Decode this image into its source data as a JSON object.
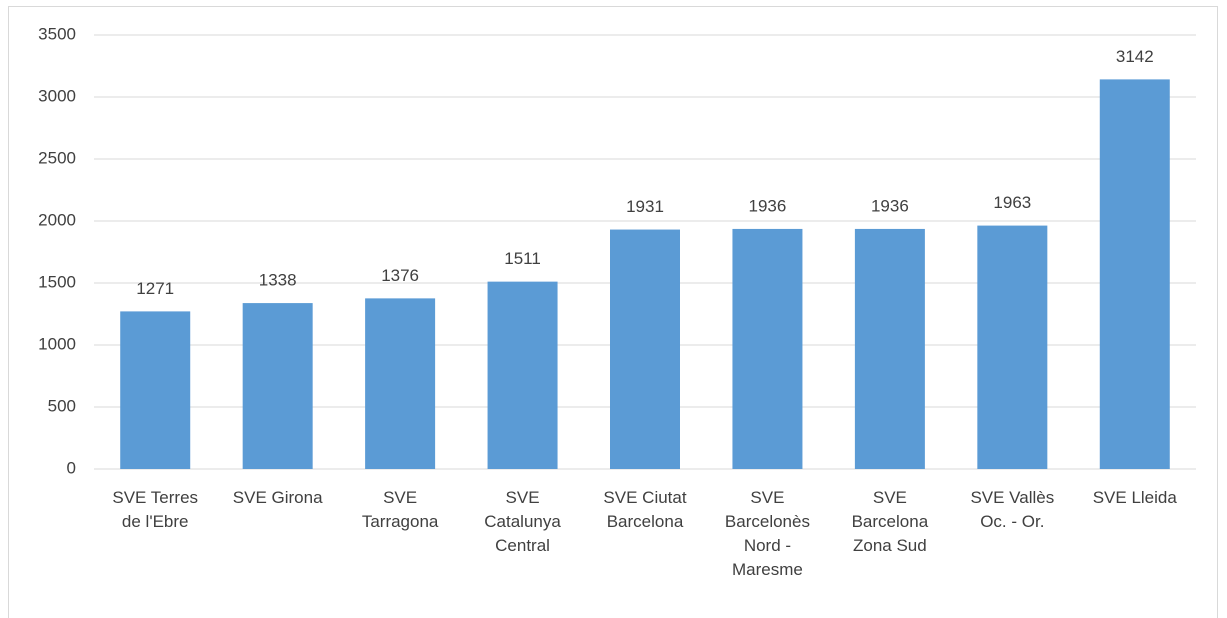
{
  "chart_data": {
    "type": "bar",
    "categories": [
      "SVE Terres de l'Ebre",
      "SVE Girona",
      "SVE Tarragona",
      "SVE Catalunya Central",
      "SVE Ciutat Barcelona",
      "SVE Barcelonès Nord - Maresme",
      "SVE Barcelona Zona Sud",
      "SVE Vallès Oc. - Or.",
      "SVE Lleida"
    ],
    "values": [
      1271,
      1338,
      1376,
      1511,
      1931,
      1936,
      1936,
      1963,
      3142
    ],
    "color": "#5b9bd5",
    "ylim": [
      0,
      3500
    ],
    "yticks": [
      0,
      500,
      1000,
      1500,
      2000,
      2500,
      3000,
      3500
    ],
    "grid": true
  }
}
